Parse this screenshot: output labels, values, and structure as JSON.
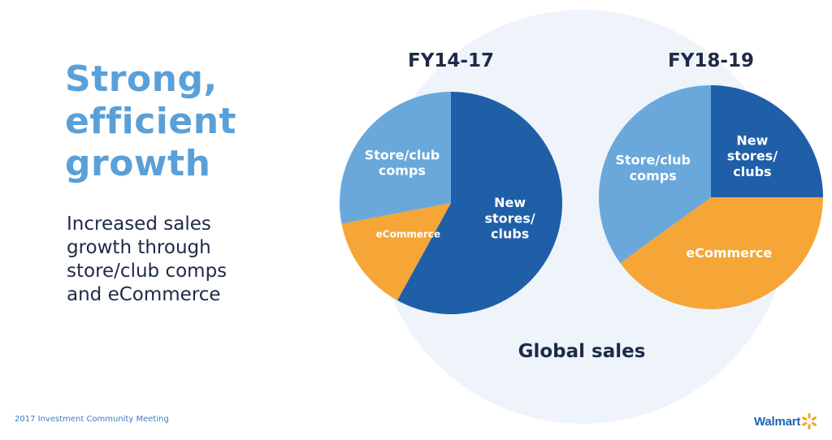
{
  "headline": [
    "Strong,",
    "efficient",
    "growth"
  ],
  "subtext": [
    "Increased sales",
    "growth through",
    "store/club comps",
    "and eCommerce"
  ],
  "footer": "2017 Investment Community Meeting",
  "logo": {
    "word": "Walmart",
    "spark_color": "#f5a623"
  },
  "colors": {
    "new_stores": "#1f5fa8",
    "ecommerce": "#f5a637",
    "store_comps": "#6aa8db",
    "headline": "#5aa0d8",
    "text": "#1e2a47"
  },
  "chart_data": [
    {
      "type": "pie",
      "title": "FY14-17",
      "slices": [
        {
          "label": "New stores/ clubs",
          "lines": [
            "New",
            "stores/",
            "clubs"
          ],
          "value": 58,
          "color": "#1f5fa8"
        },
        {
          "label": "eCommerce",
          "lines": [
            "eCommerce"
          ],
          "value": 14,
          "color": "#f5a637"
        },
        {
          "label": "Store/club comps",
          "lines": [
            "Store/club",
            "comps"
          ],
          "value": 28,
          "color": "#6aa8db"
        }
      ]
    },
    {
      "type": "pie",
      "title": "FY18-19",
      "slices": [
        {
          "label": "New stores/ clubs",
          "lines": [
            "New",
            "stores/",
            "clubs"
          ],
          "value": 25,
          "color": "#1f5fa8"
        },
        {
          "label": "eCommerce",
          "lines": [
            "eCommerce"
          ],
          "value": 40,
          "color": "#f5a637"
        },
        {
          "label": "Store/club comps",
          "lines": [
            "Store/club",
            "comps"
          ],
          "value": 35,
          "color": "#6aa8db"
        }
      ]
    }
  ],
  "chart_caption": "Global sales"
}
